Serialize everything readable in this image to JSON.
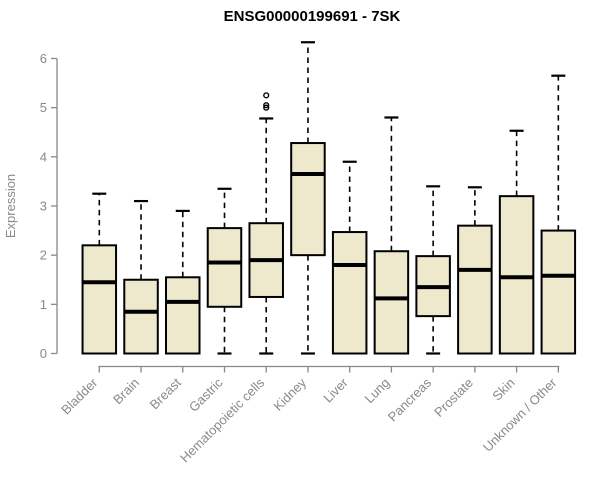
{
  "chart_data": {
    "type": "boxplot",
    "title": "ENSG00000199691 - 7SK",
    "xlabel": "",
    "ylabel": "Expression",
    "ylim": [
      0,
      6.5
    ],
    "yticks": [
      0,
      1,
      2,
      3,
      4,
      5,
      6
    ],
    "grid": false,
    "legend": false,
    "categories": [
      "Bladder",
      "Brain",
      "Breast",
      "Gastric",
      "Hematopoietic cells",
      "Kidney",
      "Liver",
      "Lung",
      "Pancreas",
      "Prostate",
      "Skin",
      "Unknown / Other"
    ],
    "series": [
      {
        "name": "Bladder",
        "whisker_low": 0,
        "q1": 0,
        "median": 1.45,
        "q3": 2.2,
        "whisker_high": 3.25,
        "outliers": []
      },
      {
        "name": "Brain",
        "whisker_low": 0,
        "q1": 0,
        "median": 0.85,
        "q3": 1.5,
        "whisker_high": 3.1,
        "outliers": []
      },
      {
        "name": "Breast",
        "whisker_low": 0,
        "q1": 0,
        "median": 1.05,
        "q3": 1.55,
        "whisker_high": 2.9,
        "outliers": []
      },
      {
        "name": "Gastric",
        "whisker_low": 0,
        "q1": 0.95,
        "median": 1.85,
        "q3": 2.55,
        "whisker_high": 3.35,
        "outliers": []
      },
      {
        "name": "Hematopoietic cells",
        "whisker_low": 0,
        "q1": 1.15,
        "median": 1.9,
        "q3": 2.65,
        "whisker_high": 4.78,
        "outliers": [
          5.0,
          5.05,
          5.25
        ]
      },
      {
        "name": "Kidney",
        "whisker_low": 0,
        "q1": 2.0,
        "median": 3.65,
        "q3": 4.28,
        "whisker_high": 6.33,
        "outliers": []
      },
      {
        "name": "Liver",
        "whisker_low": 0,
        "q1": 0,
        "median": 1.8,
        "q3": 2.47,
        "whisker_high": 3.9,
        "outliers": []
      },
      {
        "name": "Lung",
        "whisker_low": 0,
        "q1": 0,
        "median": 1.12,
        "q3": 2.08,
        "whisker_high": 4.8,
        "outliers": []
      },
      {
        "name": "Pancreas",
        "whisker_low": 0,
        "q1": 0.76,
        "median": 1.35,
        "q3": 1.98,
        "whisker_high": 3.4,
        "outliers": []
      },
      {
        "name": "Prostate",
        "whisker_low": 0,
        "q1": 0,
        "median": 1.7,
        "q3": 2.6,
        "whisker_high": 3.38,
        "outliers": []
      },
      {
        "name": "Skin",
        "whisker_low": 0,
        "q1": 0,
        "median": 1.55,
        "q3": 3.2,
        "whisker_high": 4.53,
        "outliers": []
      },
      {
        "name": "Unknown / Other",
        "whisker_low": 0,
        "q1": 0,
        "median": 1.58,
        "q3": 2.5,
        "whisker_high": 5.65,
        "outliers": []
      }
    ],
    "colors": {
      "background": "#FFFFFF",
      "box_fill": "#EEE8CD",
      "box_stroke": "#000000",
      "median": "#000000",
      "whisker": "#000000",
      "outlier_stroke": "#000000",
      "axis": "#888888",
      "tick_label": "#8A8A8A",
      "title": "#000000"
    }
  }
}
